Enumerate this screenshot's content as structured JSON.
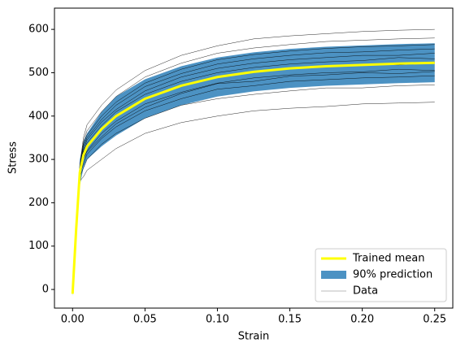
{
  "chart_data": {
    "type": "line",
    "xlabel": "Strain",
    "ylabel": "Stress",
    "x": [
      0,
      0.0025,
      0.005,
      0.0075,
      0.01,
      0.02,
      0.03,
      0.05,
      0.075,
      0.1,
      0.125,
      0.15,
      0.175,
      0.2,
      0.225,
      0.25
    ],
    "xlim": [
      -0.0125,
      0.2625
    ],
    "xticks": [
      {
        "value": 0,
        "label": "0.00"
      },
      {
        "value": 0.05,
        "label": "0.05"
      },
      {
        "value": 0.1,
        "label": "0.10"
      },
      {
        "value": 0.15,
        "label": "0.15"
      },
      {
        "value": 0.2,
        "label": "0.20"
      },
      {
        "value": 0.25,
        "label": "0.25"
      }
    ],
    "ylim": [
      -43,
      649
    ],
    "yticks": [
      0,
      100,
      200,
      300,
      400,
      500,
      600
    ],
    "legend": "lower right",
    "data": {
      "name": "Data",
      "color": "#000000",
      "legend_color": "#bbbbbb",
      "curves": [
        [
          0,
          130,
          250,
          260,
          275,
          300,
          325,
          360,
          385,
          400,
          412,
          418,
          422,
          428,
          430,
          432
        ],
        [
          0,
          135,
          260,
          280,
          300,
          335,
          360,
          395,
          425,
          440,
          450,
          458,
          465,
          465,
          470,
          472
        ],
        [
          0,
          138,
          265,
          290,
          312,
          348,
          375,
          412,
          440,
          462,
          470,
          480,
          484,
          488,
          490,
          493
        ],
        [
          0,
          140,
          268,
          300,
          320,
          360,
          388,
          428,
          455,
          476,
          488,
          495,
          500,
          502,
          508,
          505
        ],
        [
          0,
          142,
          272,
          312,
          332,
          372,
          400,
          442,
          470,
          490,
          500,
          512,
          514,
          520,
          518,
          524
        ],
        [
          0,
          140,
          275,
          318,
          338,
          378,
          410,
          450,
          480,
          500,
          512,
          520,
          525,
          528,
          535,
          532
        ],
        [
          0,
          143,
          276,
          322,
          345,
          386,
          415,
          458,
          490,
          510,
          522,
          530,
          535,
          540,
          540,
          545
        ],
        [
          0,
          145,
          278,
          330,
          350,
          392,
          425,
          468,
          498,
          520,
          532,
          540,
          546,
          548,
          552,
          555
        ],
        [
          0,
          146,
          280,
          335,
          356,
          400,
          432,
          476,
          508,
          530,
          542,
          550,
          556,
          560,
          562,
          565
        ],
        [
          0,
          147,
          282,
          340,
          366,
          410,
          445,
          490,
          522,
          545,
          557,
          565,
          572,
          575,
          578,
          580
        ],
        [
          0,
          148,
          285,
          350,
          380,
          425,
          460,
          505,
          540,
          562,
          578,
          585,
          590,
          595,
          598,
          600
        ],
        [
          0,
          139,
          266,
          305,
          318,
          352,
          382,
          420,
          452,
          475,
          480,
          492,
          495,
          500,
          498,
          503
        ]
      ]
    },
    "band": {
      "name": "90% prediction",
      "color": "#1f77b4",
      "lower": [
        -15,
        120,
        240,
        280,
        300,
        330,
        355,
        395,
        425,
        445,
        457,
        465,
        470,
        473,
        476,
        478
      ],
      "upper": [
        -5,
        160,
        300,
        340,
        360,
        410,
        445,
        485,
        515,
        535,
        547,
        555,
        560,
        563,
        566,
        568
      ]
    },
    "series": [
      {
        "name": "Trained mean",
        "color": "#ffff00",
        "values": [
          -10,
          140,
          270,
          310,
          330,
          370,
          400,
          440,
          470,
          490,
          502,
          510,
          515,
          518,
          521,
          523
        ]
      }
    ]
  }
}
